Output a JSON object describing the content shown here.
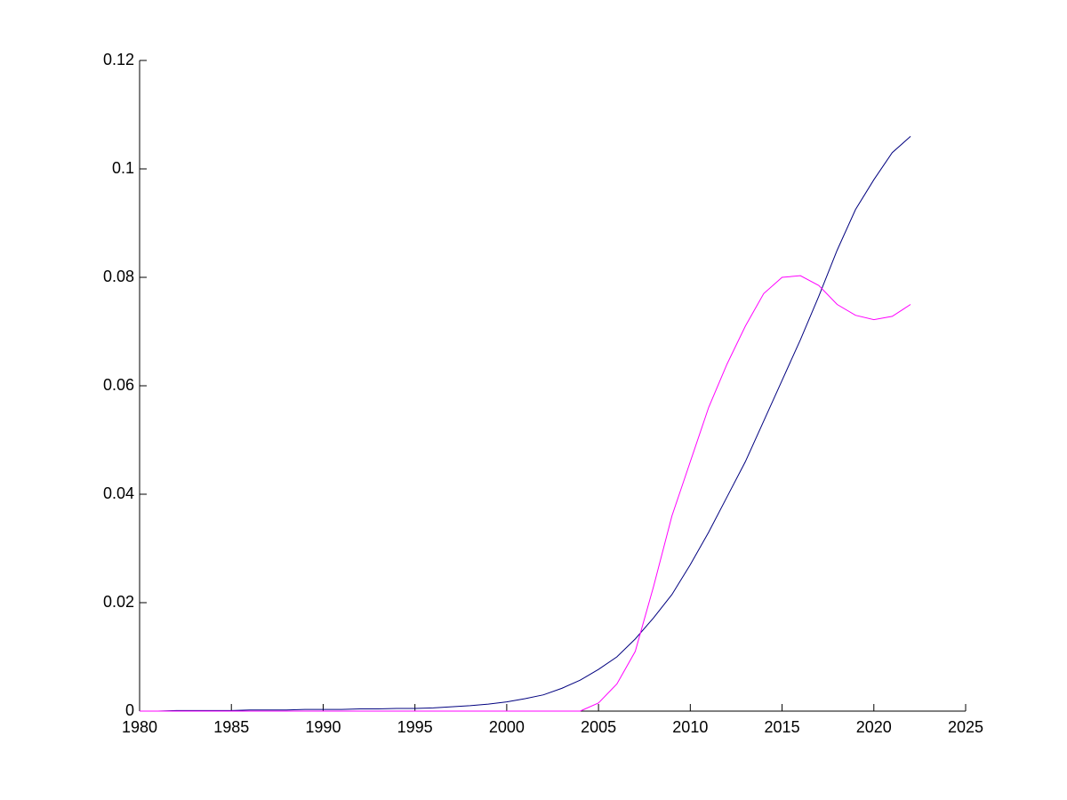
{
  "chart_data": {
    "type": "line",
    "x": [
      1980,
      1981,
      1982,
      1983,
      1984,
      1985,
      1986,
      1987,
      1988,
      1989,
      1990,
      1991,
      1992,
      1993,
      1994,
      1995,
      1996,
      1997,
      1998,
      1999,
      2000,
      2001,
      2002,
      2003,
      2004,
      2005,
      2006,
      2007,
      2008,
      2009,
      2010,
      2011,
      2012,
      2013,
      2014,
      2015,
      2016,
      2017,
      2018,
      2019,
      2020,
      2021,
      2022
    ],
    "series": [
      {
        "color": "#00007f",
        "values": [
          0,
          0,
          0.0001,
          0.0001,
          0.0001,
          0.0001,
          0.0002,
          0.0002,
          0.0002,
          0.0003,
          0.0003,
          0.0003,
          0.0004,
          0.0004,
          0.0005,
          0.0005,
          0.0006,
          0.0008,
          0.001,
          0.0013,
          0.0017,
          0.0023,
          0.003,
          0.0042,
          0.0057,
          0.0077,
          0.01,
          0.0133,
          0.0172,
          0.0215,
          0.027,
          0.033,
          0.0395,
          0.046,
          0.0535,
          0.061,
          0.0685,
          0.0765,
          0.085,
          0.0925,
          0.098,
          0.103,
          0.106
        ]
      },
      {
        "color": "#ff00ff",
        "values": [
          0,
          0,
          0,
          0,
          0,
          0,
          0,
          0,
          0,
          0,
          0,
          0,
          0,
          0,
          0,
          0,
          0,
          0,
          0,
          0,
          0,
          0,
          0,
          0,
          0,
          0.0015,
          0.005,
          0.011,
          0.023,
          0.036,
          0.046,
          0.056,
          0.064,
          0.071,
          0.077,
          0.08,
          0.0803,
          0.0785,
          0.075,
          0.073,
          0.0722,
          0.0728,
          0.075
        ]
      }
    ],
    "xlim": [
      1980,
      2025
    ],
    "xticks": [
      1980,
      1985,
      1990,
      1995,
      2000,
      2005,
      2010,
      2015,
      2020,
      2025
    ],
    "ylim": [
      0,
      0.12
    ],
    "yticks": [
      0,
      0.02,
      0.04,
      0.06,
      0.08,
      0.1,
      0.12
    ],
    "grid": false
  }
}
